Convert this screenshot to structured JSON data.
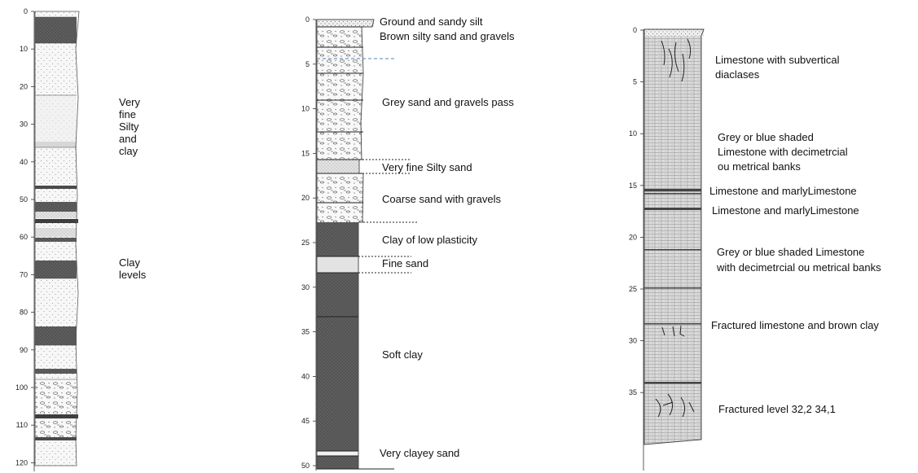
{
  "logs": [
    {
      "id": "log-a",
      "depth_ticks": [
        "0",
        "10",
        "20",
        "30",
        "40",
        "50",
        "60",
        "70",
        "80",
        "90",
        "100",
        "110",
        "120"
      ],
      "labels": [
        {
          "lines": [
            "Very",
            "fine",
            "Silty",
            "and",
            "clay"
          ]
        },
        {
          "lines": [
            "Clay",
            "levels"
          ]
        }
      ]
    },
    {
      "id": "log-b",
      "depth_ticks": [
        "0",
        "5",
        "10",
        "15",
        "20",
        "25",
        "30",
        "35",
        "40",
        "45",
        "50"
      ],
      "labels": [
        {
          "lines": [
            "Ground and sandy silt"
          ]
        },
        {
          "lines": [
            "Brown silty sand and gravels"
          ]
        },
        {
          "lines": [
            "Grey sand and gravels pass"
          ]
        },
        {
          "lines": [
            "Very fine Silty sand"
          ]
        },
        {
          "lines": [
            "Coarse sand with gravels"
          ]
        },
        {
          "lines": [
            "Clay of low plasticity"
          ]
        },
        {
          "lines": [
            "Fine sand"
          ]
        },
        {
          "lines": [
            "Soft clay"
          ]
        },
        {
          "lines": [
            "Very clayey sand"
          ]
        }
      ]
    },
    {
      "id": "log-c",
      "depth_ticks": [
        "0",
        "5",
        "10",
        "15",
        "20",
        "25",
        "30",
        "35"
      ],
      "labels": [
        {
          "lines": [
            "Limestone with subvertical",
            "diaclases"
          ]
        },
        {
          "lines": [
            "Grey or blue shaded",
            "Limestone with decimetrcial",
            "ou metrical banks"
          ]
        },
        {
          "lines": [
            "Limestone and marlyLimestone"
          ]
        },
        {
          "lines": [
            "Limestone and marlyLimestone"
          ]
        },
        {
          "lines": [
            "Grey or blue shaded Limestone",
            "with decimetrcial ou metrical banks"
          ]
        },
        {
          "lines": [
            "Fractured limestone and brown clay"
          ]
        },
        {
          "lines": [
            "Fractured level 32,2 34,1"
          ]
        }
      ]
    }
  ]
}
